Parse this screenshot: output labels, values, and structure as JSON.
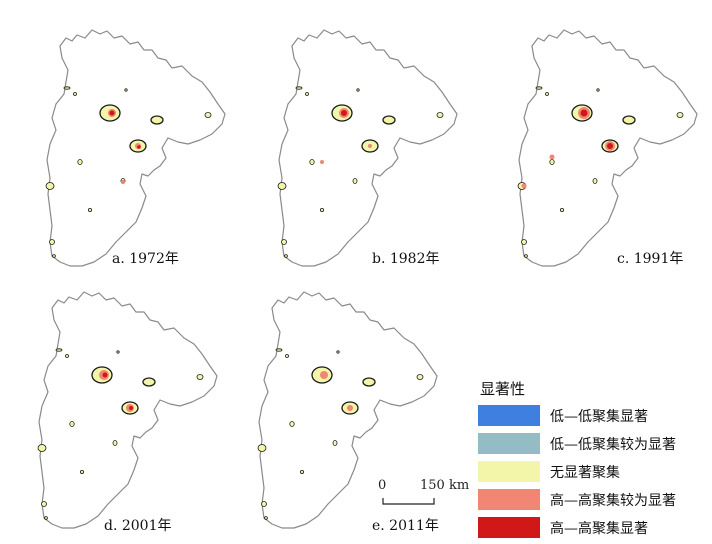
{
  "panels": [
    {
      "label": "a. 1972年"
    },
    {
      "label": "b. 1982年"
    },
    {
      "label": "c. 1991年"
    },
    {
      "label": "d. 2001年"
    },
    {
      "label": "e. 2011年"
    }
  ],
  "legend": {
    "title": "显著性",
    "items": [
      {
        "label": "低—低聚集显著",
        "color": "#3f7fe0"
      },
      {
        "label": "低—低聚集较为显著",
        "color": "#94bcc4"
      },
      {
        "label": "无显著聚集",
        "color": "#f3f6a8"
      },
      {
        "label": "高—高聚集较为显著",
        "color": "#f28674"
      },
      {
        "label": "高—高聚集显著",
        "color": "#d01818"
      }
    ]
  },
  "scale_bar": {
    "start": "0",
    "distance": "150 km"
  }
}
